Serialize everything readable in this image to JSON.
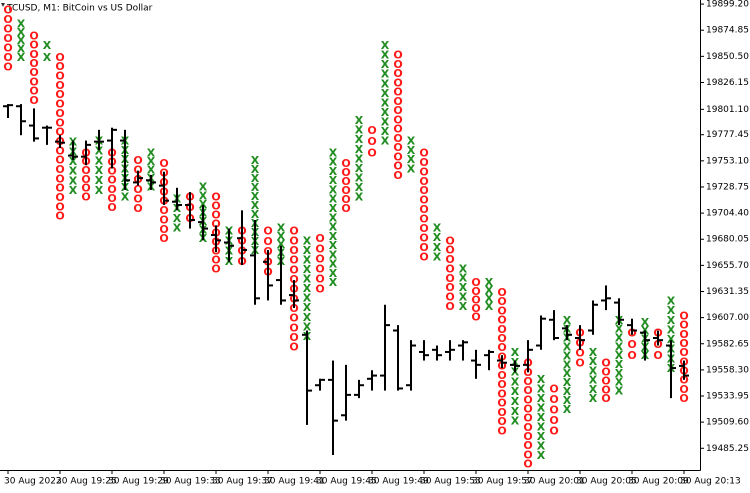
{
  "chart_data": {
    "type": "ohlc",
    "title": "TCUSD, M1:  BitCoin vs US Dollar",
    "categories": [
      "30 Aug 2022",
      null,
      null,
      null,
      "30 Aug 19:25",
      null,
      null,
      null,
      "30 Aug 19:29",
      null,
      null,
      null,
      "30 Aug 19:33",
      null,
      null,
      null,
      "30 Aug 19:37",
      null,
      null,
      null,
      "30 Aug 19:41",
      null,
      null,
      null,
      "30 Aug 19:45",
      null,
      null,
      null,
      "30 Aug 19:49",
      null,
      null,
      null,
      "30 Aug 19:53",
      null,
      null,
      null,
      "30 Aug 19:57",
      null,
      null,
      null,
      "30 Aug 20:01",
      null,
      null,
      null,
      "30 Aug 20:05",
      null,
      null,
      null,
      "30 Aug 20:09",
      null,
      null,
      null,
      "30 Aug 20:13"
    ],
    "open": [
      19804,
      19804,
      19786,
      19784,
      19771,
      19758,
      19757,
      19771,
      19772,
      19772,
      19733,
      19735,
      19730,
      19715,
      19712,
      19696,
      19684,
      19677,
      19681,
      19665,
      19659,
      19642,
      19628,
      19591,
      19544,
      19549,
      19516,
      19535,
      19550,
      19553,
      19595,
      19544,
      19575,
      19577,
      19575,
      19581,
      19567,
      19572,
      19567,
      19563,
      19563,
      19581,
      19605,
      19597,
      19588,
      19595,
      19623,
      19621,
      19600,
      19593,
      19588,
      19581,
      19562
    ],
    "high": [
      19806,
      19806,
      19802,
      19786,
      19777,
      19772,
      19772,
      19782,
      19784,
      19782,
      19744,
      19740,
      19743,
      19728,
      19724,
      19712,
      19693,
      19690,
      19707,
      19698,
      19670,
      19674,
      19642,
      19595,
      19550,
      19567,
      19563,
      19549,
      19558,
      19619,
      19600,
      19586,
      19586,
      19581,
      19586,
      19586,
      19577,
      19577,
      19572,
      19567,
      19586,
      19609,
      19614,
      19600,
      19600,
      19623,
      19637,
      19625,
      19606,
      19595,
      19595,
      19586,
      19567
    ],
    "low": [
      19793,
      19777,
      19771,
      19768,
      19765,
      19754,
      19749,
      19763,
      19746,
      19726,
      19730,
      19726,
      19712,
      19707,
      19690,
      19679,
      19668,
      19659,
      19656,
      19619,
      19623,
      19619,
      19616,
      19507,
      19539,
      19479,
      19511,
      19532,
      19539,
      19539,
      19539,
      19539,
      19567,
      19567,
      19567,
      19567,
      19550,
      19558,
      19560,
      19556,
      19556,
      19577,
      19586,
      19586,
      19577,
      19591,
      19614,
      19600,
      19591,
      19567,
      19581,
      19532,
      19549
    ],
    "close": [
      19805,
      19790,
      19774,
      19784,
      19770,
      19757,
      19768,
      19771,
      19782,
      19735,
      19737,
      19733,
      19716,
      19712,
      19698,
      19690,
      19679,
      19674,
      19670,
      19625,
      19637,
      19623,
      19623,
      19539,
      19549,
      19511,
      19535,
      19544,
      19553,
      19600,
      19541,
      19581,
      19572,
      19572,
      19577,
      19584,
      19563,
      19575,
      19565,
      19562,
      19577,
      19606,
      19588,
      19591,
      19586,
      19619,
      19625,
      19605,
      19595,
      19586,
      19586,
      19560,
      19553
    ],
    "bar_color": "#000000",
    "pnf": {
      "type": [
        "O",
        "X",
        "O",
        "X",
        "O",
        "X",
        "O",
        "X",
        "O",
        "X",
        "O",
        "X",
        "O",
        "X",
        "O",
        "X",
        "O",
        "X",
        "O",
        "X",
        "O",
        "X",
        "O",
        "X",
        "O",
        "X",
        "O",
        "X",
        "O",
        "X",
        "O",
        "X",
        "O",
        "X",
        "O",
        "X",
        "O",
        "X",
        "O",
        "X",
        "O",
        "X",
        "O",
        "X",
        "O",
        "X",
        "O",
        "X",
        "O",
        "X",
        "O",
        "X",
        "O"
      ],
      "high": [
        19894,
        19881,
        19870,
        19861,
        19850,
        19771,
        19761,
        19772,
        19761,
        19772,
        19754,
        19761,
        19751,
        19718,
        19720,
        19729,
        19720,
        19688,
        19688,
        19754,
        19688,
        19691,
        19688,
        19679,
        19681,
        19761,
        19751,
        19791,
        19782,
        19861,
        19852,
        19772,
        19761,
        19691,
        19679,
        19653,
        19640,
        19640,
        19631,
        19575,
        19565,
        19550,
        19541,
        19605,
        19593,
        19575,
        19565,
        19605,
        19593,
        19603,
        19593,
        19623,
        19609
      ],
      "low": [
        19841,
        19850,
        19810,
        19850,
        19702,
        19726,
        19720,
        19726,
        19710,
        19720,
        19709,
        19729,
        19681,
        19691,
        19700,
        19681,
        19653,
        19660,
        19660,
        19670,
        19650,
        19660,
        19580,
        19590,
        19634,
        19640,
        19709,
        19720,
        19761,
        19772,
        19740,
        19746,
        19664,
        19664,
        19618,
        19618,
        19608,
        19618,
        19502,
        19511,
        19471,
        19479,
        19502,
        19522,
        19565,
        19532,
        19532,
        19539,
        19572,
        19572,
        19572,
        19560,
        19532
      ],
      "colors": {
        "X": "#1e8c1e",
        "O": "#ff1a1a"
      }
    },
    "ylim": [
      19465,
      19903
    ],
    "yticks": [
      {
        "value": 19899.2,
        "label": "19899.20"
      },
      19874.85,
      {
        "value": 19850.5,
        "label": "19850.50"
      },
      19826.15,
      {
        "value": 19801.1,
        "label": "19801.10"
      },
      19777.45,
      {
        "value": 19753.1,
        "label": "19753.10"
      },
      19728.75,
      {
        "value": 19704.4,
        "label": "19704.40"
      },
      19680.05,
      {
        "value": 19655.7,
        "label": "19655.70"
      },
      19631.35,
      {
        "value": 19607,
        "label": "19607.00"
      },
      19582.65,
      {
        "value": 19558.3,
        "label": "19558.30"
      },
      19533.95,
      {
        "value": 19509.6,
        "label": "19509.60"
      },
      19485.25
    ]
  }
}
